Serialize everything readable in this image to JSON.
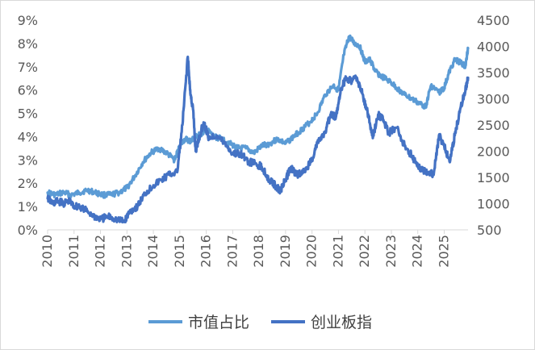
{
  "chart_data": {
    "type": "line",
    "title": "",
    "xlabel": "",
    "ylabel_left": "",
    "ylabel_right": "",
    "x_domain": [
      2010.0,
      2025.9
    ],
    "x_ticks": [
      "2010",
      "2011",
      "2012",
      "2013",
      "2014",
      "2015",
      "2016",
      "2017",
      "2018",
      "2019",
      "2020",
      "2021",
      "2022",
      "2023",
      "2024",
      "2025"
    ],
    "y_left": {
      "ticks": [
        "0%",
        "1%",
        "2%",
        "3%",
        "4%",
        "5%",
        "6%",
        "7%",
        "8%",
        "9%"
      ],
      "min": 0,
      "max": 9
    },
    "y_right": {
      "ticks": [
        "500",
        "1000",
        "1500",
        "2000",
        "2500",
        "3000",
        "3500",
        "4000",
        "4500"
      ],
      "min": 500,
      "max": 4500
    },
    "grid": false,
    "legend_position": "bottom",
    "series": [
      {
        "name": "市值占比",
        "axis": "left",
        "color": "#5b9bd5",
        "x": [
          2010.0,
          2010.3,
          2010.6,
          2010.9,
          2011.2,
          2011.5,
          2011.8,
          2012.1,
          2012.4,
          2012.7,
          2013.0,
          2013.3,
          2013.6,
          2013.9,
          2014.2,
          2014.5,
          2014.8,
          2015.0,
          2015.2,
          2015.4,
          2015.6,
          2015.8,
          2016.0,
          2016.3,
          2016.6,
          2016.9,
          2017.2,
          2017.5,
          2017.8,
          2018.1,
          2018.4,
          2018.7,
          2019.0,
          2019.3,
          2019.6,
          2019.9,
          2020.2,
          2020.5,
          2020.8,
          2021.0,
          2021.2,
          2021.4,
          2021.6,
          2021.8,
          2022.0,
          2022.2,
          2022.4,
          2022.6,
          2022.9,
          2023.2,
          2023.5,
          2023.8,
          2024.1,
          2024.3,
          2024.5,
          2024.8,
          2025.0,
          2025.2,
          2025.4,
          2025.6,
          2025.8,
          2025.9
        ],
        "values": [
          1.6,
          1.5,
          1.6,
          1.5,
          1.6,
          1.7,
          1.6,
          1.5,
          1.5,
          1.6,
          1.8,
          2.3,
          2.9,
          3.3,
          3.5,
          3.3,
          3.0,
          3.6,
          3.9,
          3.8,
          4.0,
          4.1,
          4.3,
          4.0,
          3.9,
          3.7,
          3.5,
          3.5,
          3.3,
          3.6,
          3.7,
          3.9,
          3.7,
          4.0,
          4.3,
          4.6,
          5.0,
          5.8,
          6.2,
          6.0,
          7.5,
          8.3,
          8.0,
          7.9,
          7.2,
          7.3,
          6.8,
          6.6,
          6.4,
          6.1,
          5.8,
          5.6,
          5.4,
          5.3,
          6.2,
          5.9,
          6.1,
          6.8,
          7.3,
          7.2,
          7.0,
          7.8
        ]
      },
      {
        "name": "创业板指",
        "axis": "right",
        "color": "#4472c4",
        "x": [
          2010.0,
          2010.2,
          2010.4,
          2010.6,
          2010.8,
          2011.0,
          2011.2,
          2011.5,
          2011.8,
          2012.0,
          2012.3,
          2012.6,
          2012.9,
          2013.1,
          2013.4,
          2013.7,
          2014.0,
          2014.3,
          2014.6,
          2014.9,
          2015.1,
          2015.3,
          2015.4,
          2015.5,
          2015.6,
          2015.7,
          2015.9,
          2016.1,
          2016.4,
          2016.7,
          2017.0,
          2017.3,
          2017.6,
          2017.9,
          2018.1,
          2018.4,
          2018.6,
          2018.8,
          2019.0,
          2019.2,
          2019.4,
          2019.7,
          2020.0,
          2020.2,
          2020.5,
          2020.7,
          2020.9,
          2021.1,
          2021.3,
          2021.5,
          2021.7,
          2021.9,
          2022.1,
          2022.3,
          2022.5,
          2022.7,
          2022.9,
          2023.2,
          2023.5,
          2023.8,
          2024.0,
          2024.2,
          2024.4,
          2024.6,
          2024.8,
          2025.0,
          2025.2,
          2025.4,
          2025.6,
          2025.8,
          2025.9
        ],
        "values": [
          1100,
          1000,
          1050,
          1000,
          1050,
          950,
          950,
          850,
          750,
          700,
          750,
          700,
          650,
          850,
          950,
          1200,
          1350,
          1450,
          1550,
          1600,
          2500,
          3800,
          3100,
          2800,
          2000,
          2200,
          2550,
          2250,
          2300,
          2150,
          1950,
          1950,
          1800,
          1750,
          1700,
          1450,
          1350,
          1250,
          1450,
          1700,
          1550,
          1600,
          1850,
          2150,
          2350,
          2700,
          2650,
          3200,
          3400,
          3350,
          3400,
          3100,
          2750,
          2250,
          2700,
          2600,
          2350,
          2450,
          2100,
          1900,
          1700,
          1650,
          1600,
          1550,
          2300,
          2100,
          1800,
          2300,
          2800,
          3150,
          3400
        ]
      }
    ]
  }
}
